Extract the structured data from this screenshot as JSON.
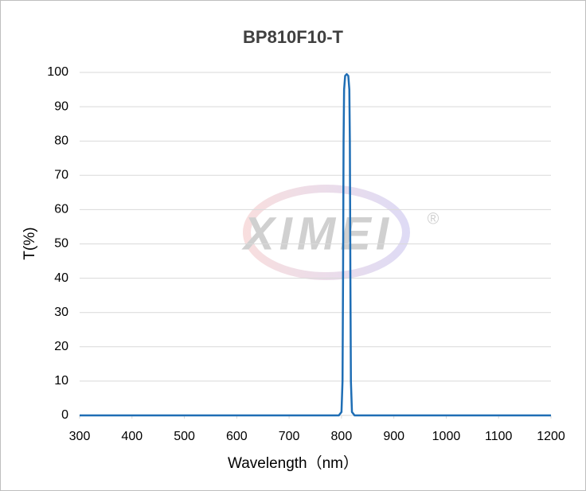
{
  "chart_data": {
    "type": "line",
    "title": "BP810F10-T",
    "xlabel": "Wavelength（nm）",
    "ylabel": "T(%)",
    "watermark": "XIMEI",
    "watermark_mark": "®",
    "x": [
      300,
      700,
      795,
      800,
      802,
      803,
      804,
      805,
      807,
      810,
      813,
      815,
      816,
      817,
      818,
      820,
      825,
      1000,
      1200
    ],
    "series": [
      {
        "name": "BP810F10-T",
        "color": "#1f6eb5",
        "values": [
          0,
          0,
          0,
          1,
          10,
          40,
          80,
          95,
          99,
          99.5,
          99,
          95,
          80,
          40,
          10,
          1,
          0,
          0,
          0
        ]
      }
    ],
    "xlim": [
      300,
      1200
    ],
    "xticks": [
      300,
      400,
      500,
      600,
      700,
      800,
      900,
      1000,
      1100,
      1200
    ],
    "ylim": [
      0,
      100
    ],
    "yticks": [
      0,
      10,
      20,
      30,
      40,
      50,
      60,
      70,
      80,
      90,
      100
    ],
    "grid": true
  }
}
